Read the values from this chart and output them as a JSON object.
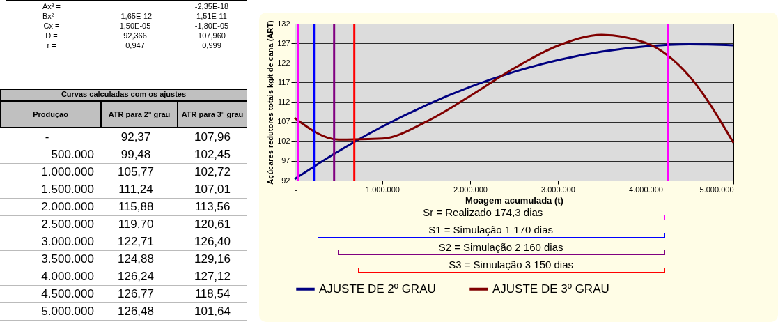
{
  "chart_data": {
    "type": "line",
    "xlabel": "Moagem acumulada (t)",
    "ylabel": "Açúcares redutores totais kg/t de cana (ART)",
    "x": [
      0,
      500000,
      1000000,
      1500000,
      2000000,
      2500000,
      3000000,
      3500000,
      4000000,
      4500000,
      5000000
    ],
    "series": [
      {
        "name": "AJUSTE DE 2º GRAU",
        "color": "#000080",
        "values": [
          92.37,
          99.48,
          105.77,
          111.24,
          115.88,
          119.7,
          122.71,
          124.88,
          126.24,
          126.77,
          126.48
        ]
      },
      {
        "name": "AJUSTE DE 3º GRAU",
        "color": "#800000",
        "values": [
          107.96,
          102.45,
          102.72,
          107.01,
          113.56,
          120.61,
          126.4,
          129.16,
          127.12,
          118.54,
          101.64
        ]
      }
    ],
    "xlim": [
      0,
      5000000
    ],
    "xticks": [
      {
        "value": 0,
        "label": "-"
      },
      {
        "value": 1000000,
        "label": "1.000.000"
      },
      {
        "value": 2000000,
        "label": "2.000.000"
      },
      {
        "value": 3000000,
        "label": "3.000.000"
      },
      {
        "value": 4000000,
        "label": "4.000.000"
      },
      {
        "value": 5000000,
        "label": "5.000.000"
      }
    ],
    "ylim": [
      92,
      132
    ],
    "yticks": [
      92,
      97,
      102,
      107,
      112,
      117,
      122,
      127,
      132
    ],
    "grid": "y",
    "legend": "bottom",
    "ref_lines": [
      {
        "axis": "x",
        "value": 40000,
        "color": "#ff00ff"
      },
      {
        "axis": "x",
        "value": 220000,
        "color": "#0000ff"
      },
      {
        "axis": "x",
        "value": 450000,
        "color": "#800080"
      },
      {
        "axis": "x",
        "value": 680000,
        "color": "#ff0000"
      },
      {
        "axis": "x",
        "value": 4250000,
        "color": "#ff00ff"
      }
    ],
    "annotations": [
      "Ax³ =",
      "Bx² =",
      "Cx =",
      "D =",
      "r =",
      "-1,65E-12",
      "1,50E-05",
      "92,366",
      "0,947",
      "-2,35E-18",
      "1,51E-11",
      "-1,80E-05",
      "107,960",
      "0,999",
      "Curvas calculadas com os ajustes",
      "Produção",
      "ATR para 2° grau",
      "ATR para 3° grau",
      "-",
      "92,37",
      "107,96",
      "500.000",
      "99,48",
      "102,45",
      "1.000.000",
      "105,77",
      "102,72",
      "1.500.000",
      "111,24",
      "107,01",
      "2.000.000",
      "115,88",
      "113,56",
      "2.500.000",
      "119,70",
      "120,61",
      "3.000.000",
      "122,71",
      "126,40",
      "3.500.000",
      "124,88",
      "129,16",
      "4.000.000",
      "126,24",
      "127,12",
      "4.500.000",
      "126,77",
      "118,54",
      "5.000.000",
      "126,48",
      "101,64",
      "Sr = Realizado 174,3 dias",
      "S1 = Simulação 1 170 dias",
      "S2 = Simulação 2 160 dias",
      "S3 = Simulação 3 150 dias"
    ]
  }
}
